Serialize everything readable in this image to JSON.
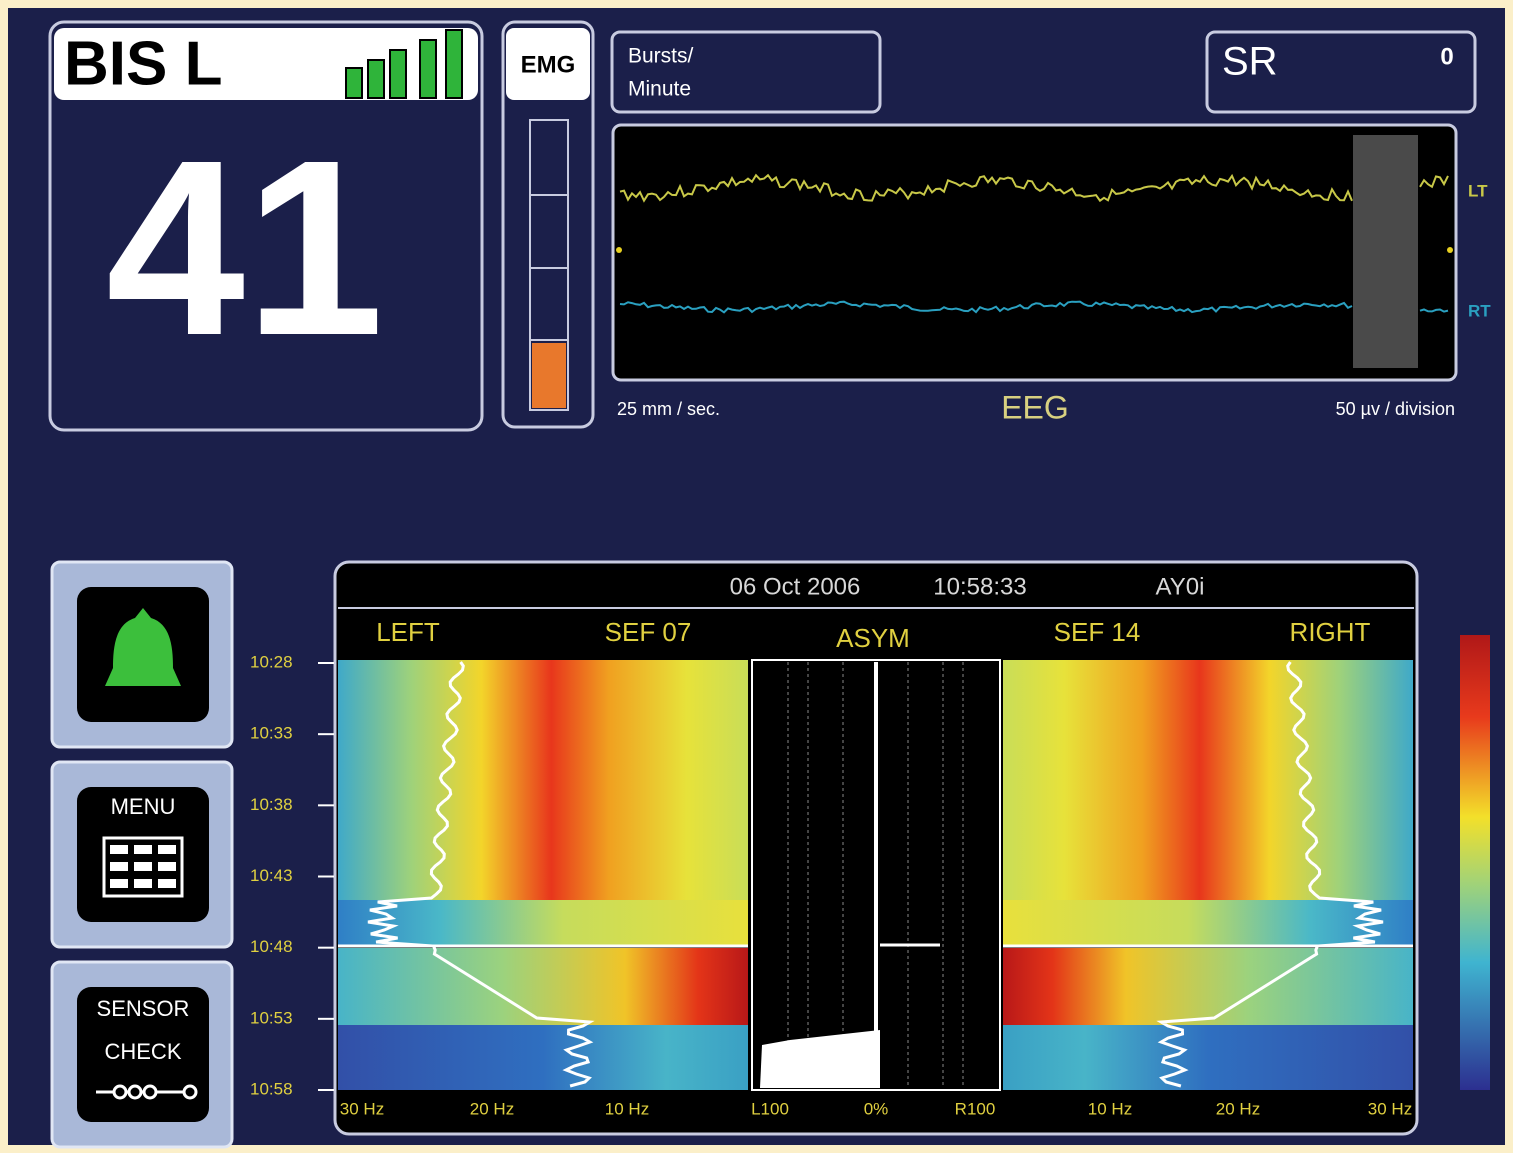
{
  "bis": {
    "label": "BIS L",
    "value": 41
  },
  "emg": {
    "label": "EMG"
  },
  "bursts": {
    "line1": "Bursts/",
    "line2": "Minute"
  },
  "sr": {
    "label": "SR",
    "value": 0
  },
  "eeg": {
    "title": "EEG",
    "speed": "25 mm / sec.",
    "scale": "50 µv / division",
    "channels": [
      "LT",
      "RT"
    ]
  },
  "trend": {
    "date": "06 Oct 2006",
    "time": "10:58:33",
    "code": "AY0i",
    "headers": [
      "LEFT",
      "SEF 07",
      "ASYM",
      "SEF 14",
      "RIGHT"
    ],
    "times": [
      "10:28",
      "10:33",
      "10:38",
      "10:43",
      "10:48",
      "10:53",
      "10:58"
    ],
    "freq_labels": [
      "30 Hz",
      "20 Hz",
      "10 Hz",
      "L100",
      "0%",
      "R100",
      "10 Hz",
      "20 Hz",
      "30 Hz"
    ]
  },
  "buttons": {
    "menu": "MENU",
    "sensor": "SENSOR",
    "check": "CHECK"
  }
}
